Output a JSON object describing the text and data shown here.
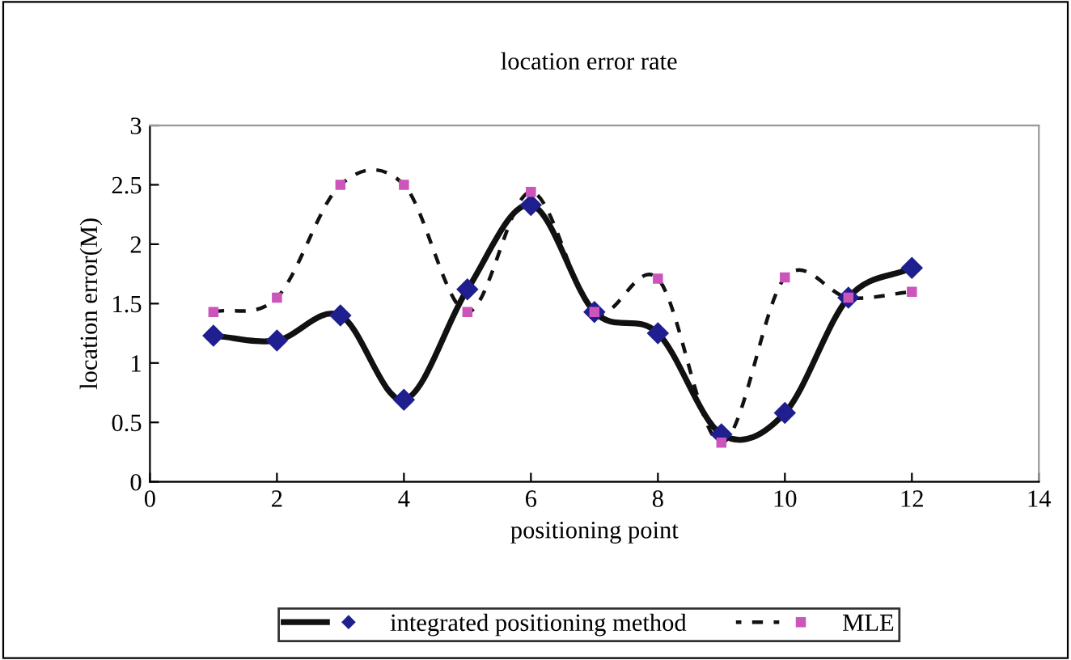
{
  "chart_data": {
    "type": "line",
    "title": "location error rate",
    "xlabel": "positioning point",
    "ylabel": "location error(M)",
    "x": [
      1,
      2,
      3,
      4,
      5,
      6,
      7,
      8,
      9,
      10,
      11,
      12
    ],
    "series": [
      {
        "name": "integrated positioning method",
        "color": "#1f1f8f",
        "marker": "diamond",
        "line_style": "solid",
        "values": [
          1.23,
          1.19,
          1.4,
          0.69,
          1.62,
          2.33,
          1.43,
          1.25,
          0.4,
          0.58,
          1.55,
          1.8
        ]
      },
      {
        "name": "MLE",
        "color": "#cc55bb",
        "marker": "square",
        "line_style": "dashed",
        "values": [
          1.43,
          1.55,
          2.5,
          2.5,
          1.43,
          2.44,
          1.43,
          1.71,
          0.33,
          1.72,
          1.55,
          1.6
        ]
      }
    ],
    "xlim": [
      0,
      14
    ],
    "xticks": [
      0,
      2,
      4,
      6,
      8,
      10,
      12,
      14
    ],
    "ylim": [
      0,
      3
    ],
    "yticks": [
      0,
      0.5,
      1,
      1.5,
      2,
      2.5,
      3
    ],
    "grid": false,
    "legend": "bottom"
  }
}
